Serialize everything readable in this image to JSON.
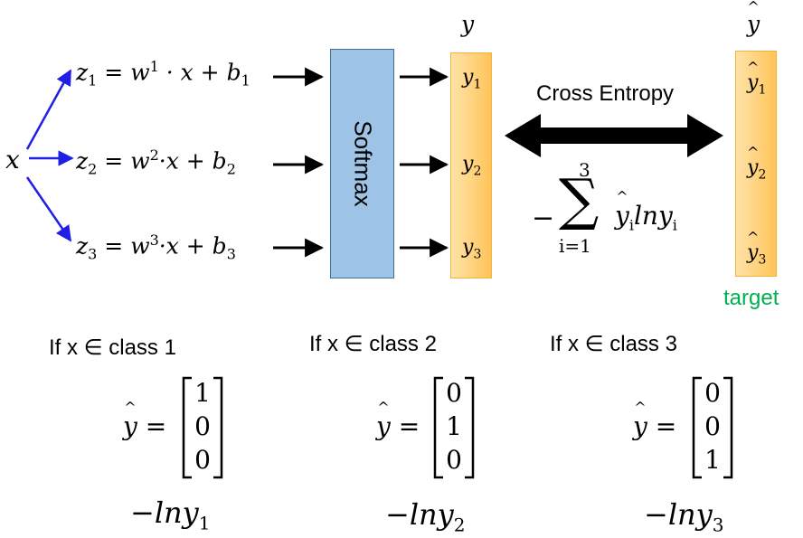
{
  "input": {
    "x": "x"
  },
  "equations": [
    {
      "z": "z",
      "idx": "1",
      "w": "w",
      "sup": "1",
      "rest": " · x + b",
      "b": "1"
    },
    {
      "z": "z",
      "idx": "2",
      "w": "w",
      "sup": "2",
      "rest": "·x + b",
      "b": "2"
    },
    {
      "z": "z",
      "idx": "3",
      "w": "w",
      "sup": "3",
      "rest": "·x + b",
      "b": "3"
    }
  ],
  "softmax": {
    "label": "Softmax"
  },
  "output": {
    "header": "y",
    "cells": [
      {
        "v": "y",
        "i": "1"
      },
      {
        "v": "y",
        "i": "2"
      },
      {
        "v": "y",
        "i": "3"
      }
    ]
  },
  "target": {
    "header": "y",
    "label": "target",
    "cells": [
      {
        "v": "y",
        "i": "1"
      },
      {
        "v": "y",
        "i": "2"
      },
      {
        "v": "y",
        "i": "3"
      }
    ]
  },
  "cross_entropy": {
    "label": "Cross Entropy",
    "minus": "−",
    "sigma": "∑",
    "upper": "3",
    "lower": "i=1",
    "term_hat": "y",
    "term_i": "i",
    "term_ln": "lny",
    "term_i2": "i"
  },
  "cases": [
    {
      "caption": "If x ∈ class 1",
      "lhs": "y",
      "eq": "=",
      "vector": [
        "1",
        "0",
        "0"
      ],
      "loss": "−lny",
      "loss_i": "1"
    },
    {
      "caption": "If x ∈ class 2",
      "lhs": "y",
      "eq": "=",
      "vector": [
        "0",
        "1",
        "0"
      ],
      "loss": "−lny",
      "loss_i": "2"
    },
    {
      "caption": "If x ∈ class 3",
      "lhs": "y",
      "eq": "=",
      "vector": [
        "0",
        "0",
        "1"
      ],
      "loss": "−lny",
      "loss_i": "3"
    }
  ],
  "colors": {
    "input_arrows": "#1f1fe6",
    "softmax_fill": "#9dc3e6",
    "softmax_border": "#41719c",
    "vector_fill": "#ffd27f",
    "vector_border": "#f4b233",
    "target_label": "#00b050"
  }
}
